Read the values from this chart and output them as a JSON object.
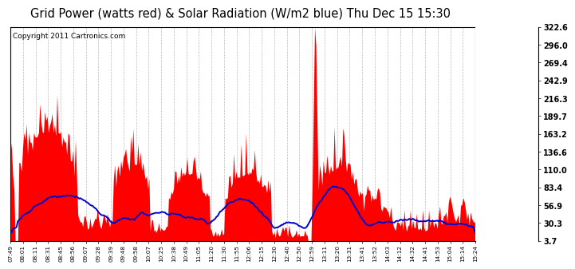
{
  "title": "Grid Power (watts red) & Solar Radiation (W/m2 blue) Thu Dec 15 15:30",
  "copyright": "Copyright 2011 Cartronics.com",
  "yticks": [
    3.7,
    30.3,
    56.9,
    83.4,
    110.0,
    136.6,
    163.2,
    189.7,
    216.3,
    242.9,
    269.4,
    296.0,
    322.6
  ],
  "xtick_labels": [
    "07:49",
    "08:01",
    "08:11",
    "08:31",
    "08:45",
    "08:56",
    "09:07",
    "09:28",
    "09:39",
    "09:48",
    "09:58",
    "10:07",
    "10:25",
    "10:38",
    "10:49",
    "11:05",
    "11:20",
    "11:30",
    "11:55",
    "12:06",
    "12:15",
    "12:30",
    "12:40",
    "12:50",
    "12:59",
    "13:11",
    "13:20",
    "13:31",
    "13:41",
    "13:52",
    "14:03",
    "14:12",
    "14:32",
    "14:41",
    "14:53",
    "15:04",
    "15:14",
    "15:24"
  ],
  "ymin": 3.7,
  "ymax": 322.6,
  "bg_color": "#ffffff",
  "plot_bg": "#ffffff",
  "grid_color": "#aaaaaa",
  "red_color": "#ff0000",
  "blue_color": "#0000cc",
  "title_fontsize": 10.5,
  "copyright_fontsize": 6.5
}
